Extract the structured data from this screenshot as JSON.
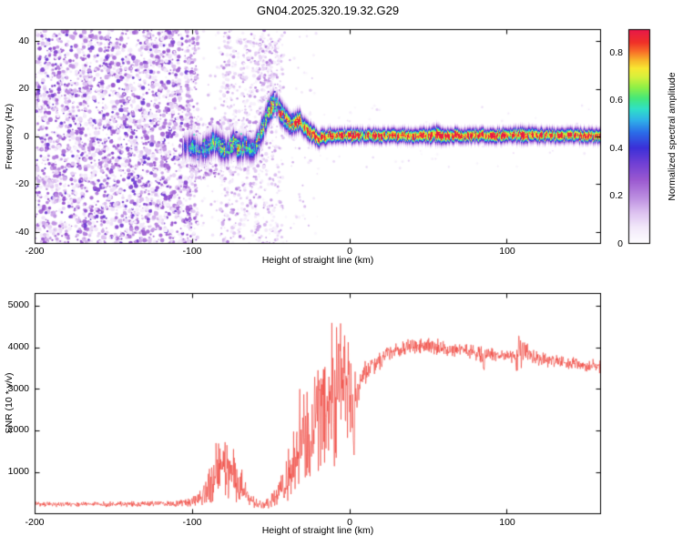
{
  "title": "GN04.2025.320.19.32.G29",
  "render_seed": 1337,
  "palette": {
    "background": "#ffffff",
    "axis": "#000000",
    "snr_line": "#ee3b33"
  },
  "colormap": {
    "stops": [
      [
        0.0,
        "#ffffff"
      ],
      [
        0.08,
        "#f2e8fa"
      ],
      [
        0.15,
        "#dcc0f0"
      ],
      [
        0.22,
        "#bb8ce0"
      ],
      [
        0.3,
        "#9b59d0"
      ],
      [
        0.38,
        "#6e3fd4"
      ],
      [
        0.45,
        "#3b30d8"
      ],
      [
        0.52,
        "#2b6ce8"
      ],
      [
        0.58,
        "#2fb3e8"
      ],
      [
        0.63,
        "#2fe0c8"
      ],
      [
        0.68,
        "#46e87a"
      ],
      [
        0.73,
        "#8ef046"
      ],
      [
        0.78,
        "#d8f03c"
      ],
      [
        0.82,
        "#f8e832"
      ],
      [
        0.86,
        "#f8b02a"
      ],
      [
        0.9,
        "#f86a28"
      ],
      [
        0.94,
        "#f03028"
      ],
      [
        1.0,
        "#e8184a"
      ]
    ]
  },
  "chart_data": [
    {
      "type": "heatmap",
      "xlabel": "Height of straight line (km)",
      "ylabel": "Frequency (Hz)",
      "xlim": [
        -200,
        160
      ],
      "ylim": [
        -45,
        45
      ],
      "xticks": [
        "-200",
        "-100",
        "0",
        "100"
      ],
      "xtick_vals": [
        -200,
        -100,
        0,
        100
      ],
      "yticks": [
        "40",
        "20",
        "0",
        "-20",
        "-40"
      ],
      "ytick_vals": [
        40,
        20,
        0,
        -20,
        -40
      ],
      "colorbar": {
        "label": "Normalized spectral amplitude",
        "ticks": [
          "0.8",
          "0.6",
          "0.4",
          "0.2",
          "0"
        ],
        "tick_vals": [
          0.8,
          0.6,
          0.4,
          0.2,
          0
        ],
        "range": [
          0,
          0.9
        ]
      },
      "noise_regions": [
        {
          "x": [
            -200,
            -100
          ],
          "f": [
            -45,
            45
          ],
          "count": 2800,
          "v": [
            0.05,
            0.38
          ],
          "r": [
            0.8,
            2.6
          ]
        },
        {
          "x": [
            -103,
            -96
          ],
          "f": [
            -45,
            45
          ],
          "count": 160,
          "v": [
            0.04,
            0.3
          ],
          "r": [
            0.8,
            2.2
          ]
        },
        {
          "x": [
            -102,
            -80
          ],
          "f": [
            -18,
            8
          ],
          "count": 200,
          "v": [
            0.06,
            0.3
          ],
          "r": [
            0.8,
            2.0
          ]
        },
        {
          "x": [
            -82,
            -52
          ],
          "f": [
            -45,
            45
          ],
          "count": 520,
          "v": [
            0.04,
            0.24
          ],
          "r": [
            0.8,
            2.2
          ]
        },
        {
          "x": [
            -58,
            -44
          ],
          "f": [
            8,
            40
          ],
          "count": 120,
          "v": [
            0.05,
            0.25
          ],
          "r": [
            0.8,
            2.0
          ]
        },
        {
          "x": [
            -52,
            -42
          ],
          "f": [
            -45,
            45
          ],
          "count": 150,
          "v": [
            0.04,
            0.2
          ],
          "r": [
            0.8,
            2.0
          ]
        },
        {
          "x": [
            -100,
            -20
          ],
          "f": [
            -45,
            45
          ],
          "count": 240,
          "v": [
            0.03,
            0.18
          ],
          "r": [
            0.8,
            1.8
          ]
        },
        {
          "x": [
            -20,
            160
          ],
          "f": [
            -14,
            14
          ],
          "count": 70,
          "v": [
            0.03,
            0.12
          ],
          "r": [
            0.8,
            1.6
          ]
        }
      ],
      "ridge_cloud": {
        "x": [
          -102,
          -36
        ],
        "spread": 4.5,
        "count": 220,
        "v": [
          0.3,
          0.72
        ],
        "r": [
          0.8,
          1.6
        ]
      },
      "ridge": [
        [
          -106,
          -5,
          0.4,
          3.0
        ],
        [
          -102,
          -3,
          0.55,
          3.2
        ],
        [
          -98,
          -5,
          0.6,
          3.2
        ],
        [
          -94,
          -6,
          0.62,
          3.4
        ],
        [
          -90,
          -4,
          0.66,
          3.4
        ],
        [
          -86,
          -2,
          0.62,
          3.2
        ],
        [
          -82,
          -4,
          0.7,
          3.4
        ],
        [
          -78,
          -6,
          0.66,
          3.2
        ],
        [
          -74,
          -3,
          0.7,
          3.2
        ],
        [
          -70,
          -5,
          0.74,
          3.4
        ],
        [
          -66,
          -4,
          0.7,
          3.2
        ],
        [
          -62,
          -6,
          0.66,
          3.2
        ],
        [
          -58,
          -1,
          0.7,
          3.4
        ],
        [
          -54,
          6,
          0.78,
          3.6
        ],
        [
          -50,
          13,
          0.84,
          3.2
        ],
        [
          -47,
          14,
          0.8,
          3.0
        ],
        [
          -44,
          10,
          0.84,
          3.0
        ],
        [
          -41,
          8,
          0.88,
          3.0
        ],
        [
          -38,
          5,
          0.84,
          2.6
        ],
        [
          -35,
          6,
          0.88,
          2.6
        ],
        [
          -32,
          7,
          0.84,
          2.6
        ],
        [
          -29,
          4,
          0.88,
          2.4
        ],
        [
          -26,
          2,
          0.9,
          2.4
        ],
        [
          -23,
          1,
          0.92,
          2.2
        ],
        [
          -20,
          -1,
          0.9,
          2.0
        ],
        [
          -16,
          0,
          0.92,
          2.0
        ],
        [
          -12,
          0.5,
          0.9,
          1.8
        ],
        [
          -6,
          0.5,
          0.92,
          1.8
        ],
        [
          0,
          0.5,
          0.92,
          1.8
        ],
        [
          10,
          0.5,
          0.9,
          1.8
        ],
        [
          20,
          0.5,
          0.92,
          1.8
        ],
        [
          30,
          0.5,
          0.9,
          1.8
        ],
        [
          40,
          0.5,
          0.92,
          1.8
        ],
        [
          50,
          0.5,
          0.9,
          1.9
        ],
        [
          56,
          1,
          0.95,
          2.2
        ],
        [
          62,
          0.5,
          0.9,
          1.8
        ],
        [
          72,
          0.5,
          0.92,
          1.8
        ],
        [
          82,
          0.5,
          0.9,
          1.8
        ],
        [
          92,
          0.5,
          0.92,
          1.8
        ],
        [
          102,
          0.5,
          0.9,
          1.8
        ],
        [
          110,
          1,
          0.93,
          2.0
        ],
        [
          120,
          0.5,
          0.9,
          1.8
        ],
        [
          135,
          0.5,
          0.92,
          1.8
        ],
        [
          150,
          0.5,
          0.9,
          1.8
        ],
        [
          160,
          0.5,
          0.91,
          1.8
        ]
      ]
    },
    {
      "type": "line",
      "xlabel": "Height of straight line (km)",
      "ylabel": "SNR (10 * v/v)",
      "xlim": [
        -200,
        160
      ],
      "ylim": [
        0,
        5300
      ],
      "xticks": [
        "-200",
        "-100",
        "0",
        "100"
      ],
      "xtick_vals": [
        -200,
        -100,
        0,
        100
      ],
      "yticks": [
        "5000",
        "4000",
        "3000",
        "2000",
        "1000"
      ],
      "ytick_vals": [
        5000,
        4000,
        3000,
        2000,
        1000
      ],
      "envelope": [
        [
          -200,
          170,
          300
        ],
        [
          -170,
          170,
          300
        ],
        [
          -140,
          170,
          310
        ],
        [
          -115,
          170,
          320
        ],
        [
          -105,
          180,
          360
        ],
        [
          -98,
          180,
          450
        ],
        [
          -92,
          220,
          750
        ],
        [
          -87,
          250,
          1400
        ],
        [
          -83,
          300,
          2100
        ],
        [
          -79,
          300,
          1900
        ],
        [
          -75,
          300,
          1650
        ],
        [
          -71,
          260,
          1400
        ],
        [
          -67,
          220,
          950
        ],
        [
          -63,
          170,
          550
        ],
        [
          -59,
          140,
          380
        ],
        [
          -55,
          130,
          320
        ],
        [
          -51,
          140,
          420
        ],
        [
          -47,
          160,
          650
        ],
        [
          -43,
          220,
          950
        ],
        [
          -40,
          260,
          1350
        ],
        [
          -38,
          320,
          1850
        ],
        [
          -36,
          420,
          2650
        ],
        [
          -34,
          420,
          2250
        ],
        [
          -32,
          520,
          3300
        ],
        [
          -30,
          520,
          2850
        ],
        [
          -28,
          620,
          3250
        ],
        [
          -26,
          520,
          3450
        ],
        [
          -24,
          720,
          3050
        ],
        [
          -22,
          820,
          3650
        ],
        [
          -20,
          720,
          4050
        ],
        [
          -18,
          920,
          4950
        ],
        [
          -16,
          820,
          3650
        ],
        [
          -14,
          1020,
          4150
        ],
        [
          -12,
          1220,
          4450
        ],
        [
          -10,
          1020,
          5120
        ],
        [
          -8,
          1220,
          4650
        ],
        [
          -6,
          1520,
          5180
        ],
        [
          -4,
          1220,
          4350
        ],
        [
          -2,
          1520,
          5120
        ],
        [
          0,
          1820,
          4450
        ],
        [
          2,
          520,
          3850
        ],
        [
          4,
          2220,
          3650
        ],
        [
          6,
          2620,
          3550
        ],
        [
          8,
          2820,
          3650
        ],
        [
          10,
          3020,
          3750
        ],
        [
          14,
          3220,
          3850
        ],
        [
          18,
          3420,
          3950
        ],
        [
          22,
          3520,
          4050
        ],
        [
          26,
          3620,
          4080
        ],
        [
          30,
          3720,
          4120
        ],
        [
          35,
          3770,
          4170
        ],
        [
          40,
          3820,
          4220
        ],
        [
          45,
          3850,
          4250
        ],
        [
          50,
          3850,
          4250
        ],
        [
          55,
          3820,
          4220
        ],
        [
          60,
          3800,
          4170
        ],
        [
          65,
          3770,
          4120
        ],
        [
          70,
          3770,
          4120
        ],
        [
          75,
          3720,
          4070
        ],
        [
          80,
          3720,
          4070
        ],
        [
          85,
          3320,
          4020
        ],
        [
          88,
          3670,
          4020
        ],
        [
          95,
          3620,
          3970
        ],
        [
          100,
          3620,
          3970
        ],
        [
          105,
          3570,
          3920
        ],
        [
          108,
          3220,
          4320
        ],
        [
          112,
          3570,
          4220
        ],
        [
          118,
          3570,
          3920
        ],
        [
          125,
          3520,
          3870
        ],
        [
          135,
          3470,
          3820
        ],
        [
          145,
          3420,
          3770
        ],
        [
          160,
          3370,
          3720
        ]
      ]
    }
  ]
}
